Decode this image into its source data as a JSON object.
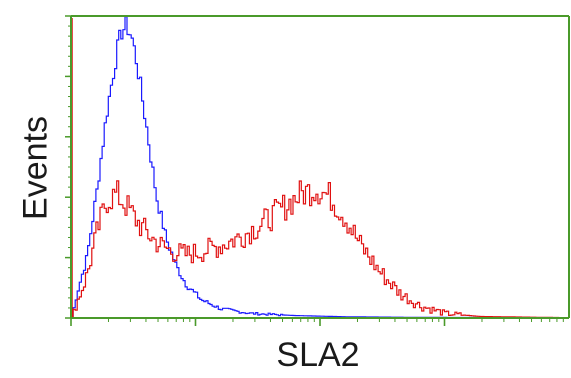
{
  "chart_data": {
    "type": "histogram",
    "xlabel": "SLA2",
    "ylabel": "Events",
    "x_scale": "log",
    "y_ticks": 5,
    "frame_color": "#4a9a2a",
    "series": [
      {
        "color": "#1a1aff",
        "curve": [
          [
            0.0,
            0.0
          ],
          [
            0.01,
            0.08
          ],
          [
            0.03,
            0.2
          ],
          [
            0.05,
            0.42
          ],
          [
            0.07,
            0.68
          ],
          [
            0.09,
            0.88
          ],
          [
            0.1,
            0.95
          ],
          [
            0.11,
            0.97
          ],
          [
            0.12,
            0.93
          ],
          [
            0.13,
            0.85
          ],
          [
            0.15,
            0.63
          ],
          [
            0.17,
            0.4
          ],
          [
            0.19,
            0.26
          ],
          [
            0.21,
            0.17
          ],
          [
            0.23,
            0.11
          ],
          [
            0.26,
            0.06
          ],
          [
            0.3,
            0.03
          ],
          [
            0.36,
            0.015
          ],
          [
            0.45,
            0.008
          ],
          [
            0.55,
            0.004
          ],
          [
            0.7,
            0.002
          ],
          [
            1.0,
            0.001
          ]
        ]
      },
      {
        "color": "#e01010",
        "curve": [
          [
            0.0,
            0.0
          ],
          [
            0.01,
            0.05
          ],
          [
            0.03,
            0.14
          ],
          [
            0.05,
            0.28
          ],
          [
            0.07,
            0.39
          ],
          [
            0.09,
            0.41
          ],
          [
            0.11,
            0.37
          ],
          [
            0.14,
            0.3
          ],
          [
            0.17,
            0.25
          ],
          [
            0.2,
            0.22
          ],
          [
            0.23,
            0.21
          ],
          [
            0.26,
            0.22
          ],
          [
            0.3,
            0.24
          ],
          [
            0.34,
            0.27
          ],
          [
            0.38,
            0.31
          ],
          [
            0.42,
            0.36
          ],
          [
            0.46,
            0.41
          ],
          [
            0.49,
            0.43
          ],
          [
            0.52,
            0.4
          ],
          [
            0.55,
            0.33
          ],
          [
            0.58,
            0.24
          ],
          [
            0.62,
            0.15
          ],
          [
            0.66,
            0.08
          ],
          [
            0.7,
            0.04
          ],
          [
            0.75,
            0.015
          ],
          [
            0.82,
            0.005
          ],
          [
            1.0,
            0.001
          ]
        ]
      }
    ]
  }
}
